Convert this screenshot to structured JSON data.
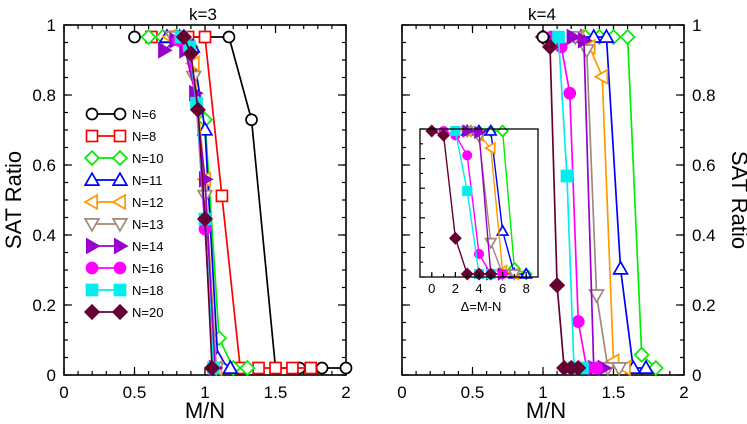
{
  "chart_data": [
    {
      "type": "line",
      "title": "k=3",
      "xlabel": "M/N",
      "ylabel": "SAT Ratio",
      "xlim": [
        0,
        2
      ],
      "ylim": [
        0,
        1
      ],
      "xticks": [
        "0",
        "0.5",
        "1",
        "1.5",
        "2"
      ],
      "yticks": [
        "0",
        "0.2",
        "0.4",
        "0.6",
        "0.8",
        "1"
      ],
      "legend_position": "left",
      "series": [
        {
          "name": "N=6",
          "color": "#000000",
          "marker": "circle-open",
          "x": [
            0.5,
            0.83,
            1.0,
            1.17,
            1.33,
            1.5,
            1.67,
            1.83,
            2.0
          ],
          "y": [
            1,
            1,
            1,
            1,
            0.75,
            0,
            0,
            0,
            0
          ]
        },
        {
          "name": "N=8",
          "color": "#ff0000",
          "marker": "square-open",
          "x": [
            0.62,
            0.75,
            0.88,
            1.0,
            1.12,
            1.25,
            1.38,
            1.5,
            1.62,
            1.75
          ],
          "y": [
            1,
            1,
            1,
            1,
            0.52,
            0,
            0,
            0,
            0,
            0
          ]
        },
        {
          "name": "N=10",
          "color": "#00ee00",
          "marker": "diamond-open",
          "x": [
            0.6,
            0.7,
            0.8,
            0.9,
            1.0,
            1.1,
            1.2,
            1.3
          ],
          "y": [
            1,
            1,
            1,
            0.97,
            0.75,
            0.09,
            0,
            0
          ]
        },
        {
          "name": "N=11",
          "color": "#0000ff",
          "marker": "triangle-up-open",
          "x": [
            0.73,
            0.82,
            0.91,
            1.0,
            1.09,
            1.18
          ],
          "y": [
            1,
            1,
            0.97,
            0.72,
            0.03,
            0
          ]
        },
        {
          "name": "N=12",
          "color": "#ff9900",
          "marker": "triangle-left-open",
          "x": [
            0.75,
            0.83,
            0.92,
            1.0,
            1.08
          ],
          "y": [
            1,
            0.98,
            0.92,
            0.57,
            0
          ]
        },
        {
          "name": "N=13",
          "color": "#a0887b",
          "marker": "triangle-down-open",
          "x": [
            0.77,
            0.85,
            0.92,
            1.0,
            1.08
          ],
          "y": [
            1,
            0.98,
            0.88,
            0.52,
            0
          ]
        },
        {
          "name": "N=14",
          "color": "#9900cc",
          "marker": "triangle-right-filled",
          "x": [
            0.71,
            0.79,
            0.86,
            0.93,
            1.0,
            1.07
          ],
          "y": [
            0.96,
            0.99,
            0.96,
            0.83,
            0.57,
            0
          ]
        },
        {
          "name": "N=16",
          "color": "#ff00ff",
          "marker": "circle-filled",
          "x": [
            0.81,
            0.88,
            0.94,
            1.0,
            1.06
          ],
          "y": [
            0.99,
            0.97,
            0.79,
            0.42,
            0
          ]
        },
        {
          "name": "N=18",
          "color": "#00eeee",
          "marker": "square-filled",
          "x": [
            0.83,
            0.89,
            0.94,
            1.0,
            1.06
          ],
          "y": [
            1,
            0.97,
            0.8,
            0.45,
            0
          ]
        },
        {
          "name": "N=20",
          "color": "#660033",
          "marker": "diamond-filled",
          "x": [
            0.85,
            0.9,
            0.95,
            1.0,
            1.05
          ],
          "y": [
            1,
            0.95,
            0.78,
            0.45,
            0
          ]
        }
      ]
    },
    {
      "type": "line",
      "title": "k=4",
      "xlabel": "M/N",
      "ylabel": "SAT Ratio",
      "ylabel_side": "right",
      "xlim": [
        0,
        2
      ],
      "ylim": [
        0,
        1
      ],
      "xticks": [
        "0",
        "0.5",
        "1",
        "1.5",
        "2"
      ],
      "yticks": [
        "0",
        "0.2",
        "0.4",
        "0.6",
        "0.8",
        "1"
      ],
      "series": [
        {
          "name": "N=10",
          "color": "#00ee00",
          "marker": "diamond-open",
          "x": [
            1.3,
            1.4,
            1.5,
            1.6,
            1.7,
            1.8
          ],
          "y": [
            1,
            1,
            1,
            1,
            0.04,
            0
          ]
        },
        {
          "name": "N=11",
          "color": "#0000ff",
          "marker": "triangle-up-open",
          "x": [
            1.27,
            1.36,
            1.45,
            1.55,
            1.64,
            1.73
          ],
          "y": [
            1,
            1,
            1,
            0.3,
            0,
            0
          ]
        },
        {
          "name": "N=12",
          "color": "#ff9900",
          "marker": "triangle-left-open",
          "x": [
            1.25,
            1.33,
            1.42,
            1.5,
            1.58
          ],
          "y": [
            1,
            0.97,
            0.88,
            0.02,
            0
          ]
        },
        {
          "name": "N=13",
          "color": "#a0887b",
          "marker": "triangle-down-open",
          "x": [
            1.23,
            1.31,
            1.38,
            1.46,
            1.54
          ],
          "y": [
            1,
            0.96,
            0.22,
            0,
            0
          ]
        },
        {
          "name": "N=14",
          "color": "#9900cc",
          "marker": "triangle-right-filled",
          "x": [
            1.21,
            1.29,
            1.36,
            1.43
          ],
          "y": [
            1,
            0.99,
            0,
            0
          ]
        },
        {
          "name": "N=16",
          "color": "#ff00ff",
          "marker": "circle-filled",
          "x": [
            1.06,
            1.13,
            1.19,
            1.25,
            1.31,
            1.38
          ],
          "y": [
            1,
            0.97,
            0.83,
            0.14,
            0,
            0
          ]
        },
        {
          "name": "N=18",
          "color": "#00eeee",
          "marker": "square-filled",
          "x": [
            1.11,
            1.17,
            1.22,
            1.28
          ],
          "y": [
            1,
            0.58,
            0,
            0
          ]
        },
        {
          "name": "N=20",
          "color": "#660033",
          "marker": "diamond-filled",
          "x": [
            1.0,
            1.05,
            1.1,
            1.15,
            1.2,
            1.25
          ],
          "y": [
            1,
            0.97,
            0.25,
            0,
            0,
            0
          ]
        },
        {
          "name": "N=6",
          "color": "#000000",
          "marker": "circle-open",
          "x": [
            1.0
          ],
          "y": [
            1
          ]
        }
      ],
      "inset": {
        "xlabel": "Δ=M-N",
        "xlim": [
          -1,
          9
        ],
        "ylim": [
          0,
          1
        ],
        "xticks": [
          "0",
          "2",
          "4",
          "6",
          "8"
        ],
        "series": [
          {
            "name": "N=10",
            "color": "#00ee00",
            "marker": "diamond-open",
            "x": [
              3,
              4,
              5,
              6,
              7,
              8
            ],
            "y": [
              1,
              1,
              1,
              1,
              0.04,
              0
            ]
          },
          {
            "name": "N=11",
            "color": "#0000ff",
            "marker": "triangle-up-open",
            "x": [
              3,
              4,
              5,
              6,
              7,
              8
            ],
            "y": [
              1,
              1,
              1,
              0.3,
              0,
              0
            ]
          },
          {
            "name": "N=12",
            "color": "#ff9900",
            "marker": "triangle-left-open",
            "x": [
              3,
              4,
              5,
              6,
              7
            ],
            "y": [
              1,
              0.97,
              0.88,
              0.02,
              0
            ]
          },
          {
            "name": "N=13",
            "color": "#a0887b",
            "marker": "triangle-down-open",
            "x": [
              3,
              4,
              5,
              6,
              7
            ],
            "y": [
              1,
              0.96,
              0.22,
              0,
              0
            ]
          },
          {
            "name": "N=14",
            "color": "#9900cc",
            "marker": "triangle-right-filled",
            "x": [
              3,
              4,
              5,
              6
            ],
            "y": [
              1,
              0.99,
              0,
              0
            ]
          },
          {
            "name": "N=16",
            "color": "#ff00ff",
            "marker": "circle-filled",
            "x": [
              1,
              2,
              3,
              4,
              5,
              6
            ],
            "y": [
              1,
              0.97,
              0.83,
              0.14,
              0,
              0
            ]
          },
          {
            "name": "N=18",
            "color": "#00eeee",
            "marker": "square-filled",
            "x": [
              2,
              3,
              4,
              5
            ],
            "y": [
              1,
              0.58,
              0,
              0
            ]
          },
          {
            "name": "N=20",
            "color": "#660033",
            "marker": "diamond-filled",
            "x": [
              0,
              1,
              2,
              3,
              4,
              5
            ],
            "y": [
              1,
              0.97,
              0.25,
              0,
              0,
              0
            ]
          }
        ]
      }
    }
  ]
}
